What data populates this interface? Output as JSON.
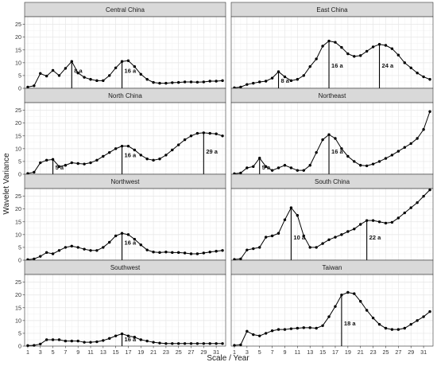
{
  "chart_data": {
    "type": "line",
    "xlabel": "Scale / Year",
    "ylabel": "Wavelet Variance",
    "x": [
      1,
      2,
      3,
      4,
      5,
      6,
      7,
      8,
      9,
      10,
      11,
      12,
      13,
      14,
      15,
      16,
      17,
      18,
      19,
      20,
      21,
      22,
      23,
      24,
      25,
      26,
      27,
      28,
      29,
      30,
      31,
      32
    ],
    "x_ticks": [
      1,
      3,
      5,
      7,
      9,
      11,
      13,
      15,
      17,
      19,
      21,
      23,
      25,
      27,
      29,
      31
    ],
    "ylim": [
      0,
      28
    ],
    "y_ticks": [
      0,
      5,
      10,
      15,
      20,
      25
    ],
    "grid": true,
    "layout": "4 rows x 2 columns facets",
    "series": [
      {
        "name": "Central China",
        "values": [
          0.5,
          1,
          5.8,
          4.8,
          7,
          5,
          7.8,
          10.5,
          6,
          4.3,
          3.5,
          3,
          3,
          5,
          8,
          10.5,
          10.8,
          8.5,
          5.5,
          3.5,
          2.3,
          2,
          2,
          2.2,
          2.3,
          2.5,
          2.5,
          2.4,
          2.5,
          2.8,
          2.8,
          3
        ],
        "annotations": [
          {
            "x": 8,
            "label": "8 a"
          },
          {
            "x": 16,
            "label": "16 a"
          }
        ]
      },
      {
        "name": "East China",
        "values": [
          0.2,
          0.5,
          1.5,
          2,
          2.5,
          2.8,
          4,
          6.5,
          4.5,
          3,
          3.5,
          5,
          8.5,
          11.5,
          16.5,
          18.5,
          18,
          16,
          13.5,
          12.5,
          12.8,
          14.5,
          16.2,
          17.2,
          16.8,
          15.5,
          13,
          10,
          8,
          6,
          4.5,
          3.5
        ],
        "annotations": [
          {
            "x": 8,
            "label": "8 a"
          },
          {
            "x": 16,
            "label": "16 a"
          },
          {
            "x": 24,
            "label": "24 a"
          }
        ]
      },
      {
        "name": "North China",
        "values": [
          0.3,
          0.8,
          4.5,
          5.5,
          5.8,
          3,
          3.5,
          4.5,
          4.2,
          4,
          4.5,
          5.5,
          7,
          8.5,
          10,
          11,
          11,
          9.5,
          7.5,
          6,
          5.5,
          6,
          7.5,
          9.5,
          11.5,
          13.5,
          15,
          16,
          16.2,
          16,
          15.8,
          15
        ],
        "annotations": [
          {
            "x": 5,
            "label": "5 a"
          },
          {
            "x": 16,
            "label": "16 a"
          },
          {
            "x": 29,
            "label": "29 a"
          }
        ]
      },
      {
        "name": "Northeast",
        "values": [
          0.2,
          0.5,
          2.5,
          3,
          6.3,
          3,
          1.5,
          2.5,
          3.5,
          2.5,
          1.5,
          1.5,
          3.5,
          8.5,
          13.5,
          15.5,
          14,
          10,
          7,
          5,
          3.5,
          3.3,
          4,
          5,
          6.2,
          7.5,
          9,
          10.5,
          12,
          14,
          17.5,
          24.5
        ],
        "annotations": [
          {
            "x": 5,
            "label": "5 a"
          },
          {
            "x": 16,
            "label": "16 a"
          }
        ]
      },
      {
        "name": "Northwest",
        "values": [
          0.2,
          0.5,
          1.5,
          3,
          2.5,
          3.8,
          5,
          5.5,
          5,
          4.3,
          3.8,
          3.8,
          5,
          7,
          9.5,
          10.5,
          10,
          8.2,
          6,
          4,
          3.2,
          3,
          3.2,
          3,
          3,
          2.8,
          2.5,
          2.5,
          2.8,
          3.2,
          3.5,
          3.8
        ],
        "annotations": [
          {
            "x": 16,
            "label": "16 a"
          }
        ]
      },
      {
        "name": "South China",
        "values": [
          0.3,
          0.5,
          4,
          4.5,
          5,
          9,
          9.5,
          10.5,
          15.8,
          20.5,
          17.5,
          9.5,
          5,
          5,
          6.5,
          8,
          9,
          10,
          11.2,
          12.2,
          14,
          15.5,
          15.5,
          15,
          14.5,
          14.8,
          16.5,
          18.5,
          20.5,
          22.5,
          25,
          27.5
        ],
        "annotations": [
          {
            "x": 10,
            "label": "10 a"
          },
          {
            "x": 22,
            "label": "22 a"
          }
        ]
      },
      {
        "name": "Southwest",
        "values": [
          0.2,
          0.3,
          0.8,
          2.5,
          2.5,
          2.5,
          2,
          2,
          2,
          1.5,
          1.5,
          1.7,
          2.2,
          3,
          4,
          4.8,
          4,
          3.5,
          2.5,
          2,
          1.5,
          1.2,
          1,
          1,
          1,
          1,
          1,
          1,
          1,
          1,
          1,
          1
        ],
        "annotations": [
          {
            "x": 16,
            "label": "16 a"
          }
        ]
      },
      {
        "name": "Taiwan",
        "values": [
          0.3,
          0.5,
          5.8,
          4.5,
          4,
          5,
          6,
          6.5,
          6.5,
          6.8,
          7,
          7.2,
          7.2,
          7,
          8,
          11.5,
          15.5,
          20,
          21,
          20.5,
          17.5,
          14,
          11,
          8.5,
          7,
          6.5,
          6.5,
          7,
          8.5,
          10,
          11.5,
          13.5
        ],
        "annotations": [
          {
            "x": 18,
            "label": "18 a"
          }
        ]
      }
    ],
    "colors": {
      "panel_background": "#ffffff",
      "panel_border": "#333333",
      "strip_background": "#d9d9d9",
      "grid_major": "#e6e6e6",
      "grid_minor": "#f2f2f2",
      "series_line": "#000000",
      "annotation_line": "#000000"
    }
  }
}
